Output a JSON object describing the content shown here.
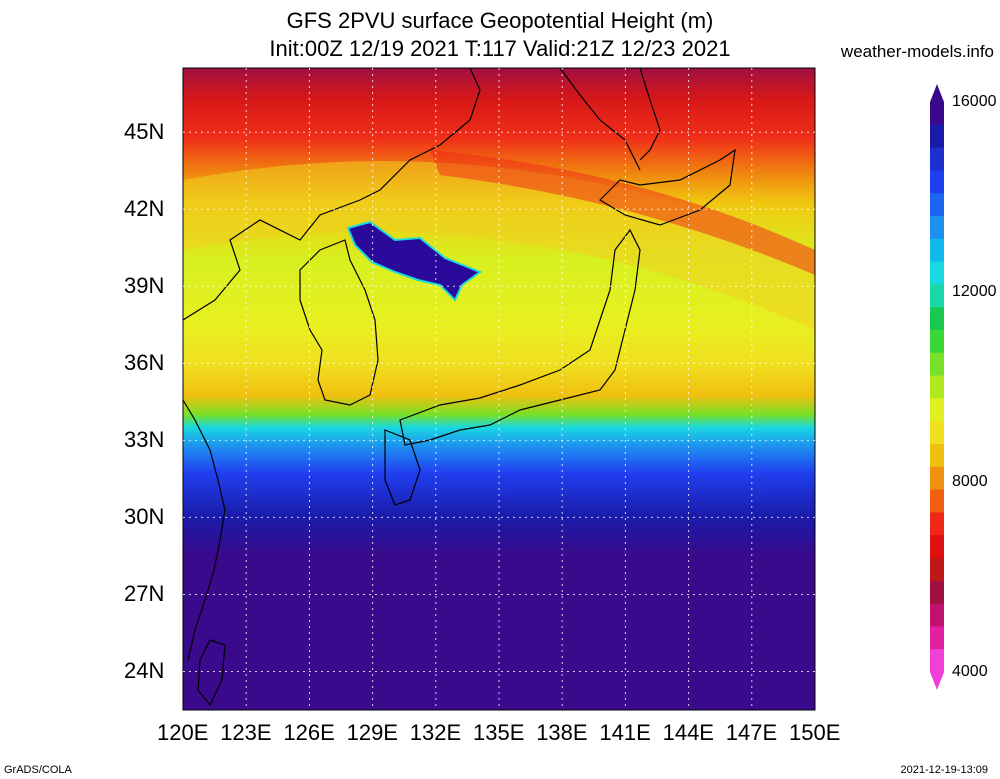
{
  "title": {
    "line1": "GFS 2PVU surface Geopotential Height (m)",
    "line2": "Init:00Z 12/19 2021 T:117 Valid:21Z 12/23 2021"
  },
  "credit": "weather-models.info",
  "map": {
    "lon_labels": [
      "120E",
      "123E",
      "126E",
      "129E",
      "132E",
      "135E",
      "138E",
      "141E",
      "144E",
      "147E",
      "150E"
    ],
    "lat_labels": [
      "45N",
      "42N",
      "39N",
      "36N",
      "33N",
      "30N",
      "27N",
      "24N"
    ],
    "lon_range": [
      120,
      150
    ],
    "lat_range": [
      22.5,
      47.5
    ],
    "grid": true
  },
  "colorbar": {
    "labels": [
      "16000",
      "12000",
      "8000",
      "4000"
    ],
    "colors": [
      "#3a0a8c",
      "#1a1aa8",
      "#1e2fd0",
      "#2040f0",
      "#1a66f0",
      "#1e90f0",
      "#10b8ee",
      "#18d8e0",
      "#18d8a8",
      "#18c850",
      "#38d838",
      "#78e028",
      "#b0e820",
      "#e0f020",
      "#f0e020",
      "#f0c010",
      "#f09010",
      "#f06010",
      "#f02818",
      "#e01010",
      "#c01818",
      "#a01040",
      "#c01070",
      "#e020a0",
      "#f040d8"
    ]
  },
  "footer": {
    "left": "GrADS/COLA",
    "right": "2021-12-19-13:09"
  }
}
